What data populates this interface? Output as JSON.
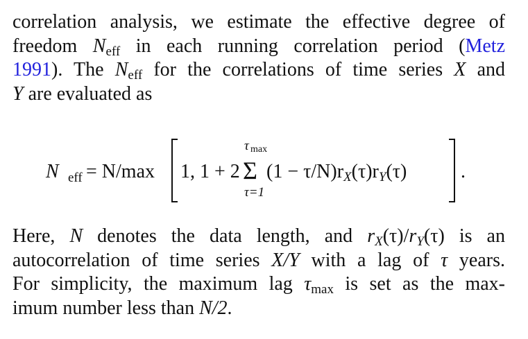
{
  "para1": {
    "l1": "correlation analysis, we estimate the effective degree of",
    "l2a": "freedom ",
    "neff_N": "N",
    "neff_sub": "eff",
    "l2b": " in each running correlation period (",
    "cite1": "Metz",
    "cite2": "1991",
    "l3a": "). The ",
    "l3b": " for the correlations of time series ",
    "X": "X",
    "l3c": " and",
    "Y": "Y",
    "l4": " are evaluated as"
  },
  "equation": {
    "lhs_N": "N",
    "lhs_sub": "eff",
    "eq": "= N/max",
    "args": "1, 1 + 2",
    "sigma": "Σ",
    "upper": "τ",
    "upper_sub": "max",
    "lower": "τ=1",
    "term": "(1 − τ/N)r",
    "rx_sub": "X",
    "tau1": "(τ)r",
    "ry_sub": "Y",
    "tau2": "(τ)",
    "period": "."
  },
  "para2": {
    "l1a": "Here, ",
    "N": "N",
    "l1b": " denotes the data length, and ",
    "r": "r",
    "sx": "X",
    "t1": "(τ)/",
    "sy": "Y",
    "t2": "(τ) is an",
    "l2a": "autocorrelation of time series ",
    "XY": "X/Y",
    "l2b": " with a lag of ",
    "tau": "τ",
    "l2c": " years.",
    "l3a": "For simplicity, the maximum lag ",
    "taumax_sub": "max",
    "l3b": " is set as the max-",
    "l4a": "imum number less than ",
    "N2": "N/2",
    "l4b": "."
  },
  "colors": {
    "link": "#2222dd"
  }
}
